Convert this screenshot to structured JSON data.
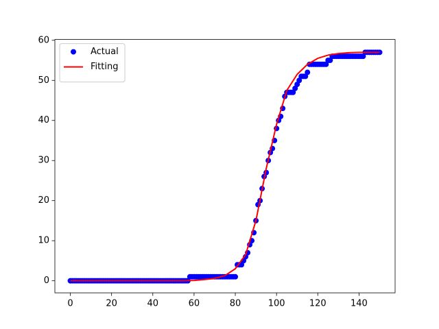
{
  "chart_data": {
    "type": "line",
    "series": [
      {
        "name": "Actual",
        "color": "#0000ff",
        "mode": "markers",
        "x": [
          0,
          1,
          2,
          3,
          4,
          5,
          6,
          7,
          8,
          9,
          10,
          11,
          12,
          13,
          14,
          15,
          16,
          17,
          18,
          19,
          20,
          21,
          22,
          23,
          24,
          25,
          26,
          27,
          28,
          29,
          30,
          31,
          32,
          33,
          34,
          35,
          36,
          37,
          38,
          39,
          40,
          41,
          42,
          43,
          44,
          45,
          46,
          47,
          48,
          49,
          50,
          51,
          52,
          53,
          54,
          55,
          56,
          57,
          58,
          59,
          60,
          61,
          62,
          63,
          64,
          65,
          66,
          67,
          68,
          69,
          70,
          71,
          72,
          73,
          74,
          75,
          76,
          77,
          78,
          79,
          80,
          81,
          82,
          83,
          84,
          85,
          86,
          87,
          88,
          89,
          90,
          91,
          92,
          93,
          94,
          95,
          96,
          97,
          98,
          99,
          100,
          101,
          102,
          103,
          104,
          105,
          106,
          107,
          108,
          109,
          110,
          111,
          112,
          113,
          114,
          115,
          116,
          117,
          118,
          119,
          120,
          121,
          122,
          123,
          124,
          125,
          126,
          127,
          128,
          129,
          130,
          131,
          132,
          133,
          134,
          135,
          136,
          137,
          138,
          139,
          140,
          141,
          142,
          143,
          144,
          145,
          146,
          147,
          148,
          149,
          150
        ],
        "values": [
          0,
          0,
          0,
          0,
          0,
          0,
          0,
          0,
          0,
          0,
          0,
          0,
          0,
          0,
          0,
          0,
          0,
          0,
          0,
          0,
          0,
          0,
          0,
          0,
          0,
          0,
          0,
          0,
          0,
          0,
          0,
          0,
          0,
          0,
          0,
          0,
          0,
          0,
          0,
          0,
          0,
          0,
          0,
          0,
          0,
          0,
          0,
          0,
          0,
          0,
          0,
          0,
          0,
          0,
          0,
          0,
          0,
          0,
          1,
          1,
          1,
          1,
          1,
          1,
          1,
          1,
          1,
          1,
          1,
          1,
          1,
          1,
          1,
          1,
          1,
          1,
          1,
          1,
          1,
          1,
          1,
          4,
          4,
          4,
          5,
          6,
          7,
          9,
          10,
          12,
          15,
          19,
          20,
          23,
          26,
          27,
          30,
          32,
          33,
          35,
          38,
          40,
          41,
          43,
          46,
          47,
          47,
          47,
          47,
          48,
          49,
          50,
          51,
          51,
          51,
          52,
          54,
          54,
          54,
          54,
          54,
          54,
          54,
          54,
          54,
          55,
          55,
          56,
          56,
          56,
          56,
          56,
          56,
          56,
          56,
          56,
          56,
          56,
          56,
          56,
          56,
          56,
          56,
          57,
          57,
          57,
          57,
          57,
          57,
          57,
          57
        ]
      },
      {
        "name": "Fitting",
        "color": "#ff0000",
        "mode": "line",
        "x": [
          0,
          5,
          10,
          15,
          20,
          25,
          30,
          35,
          40,
          45,
          50,
          55,
          60,
          65,
          70,
          75,
          80,
          85,
          90,
          95,
          100,
          105,
          110,
          115,
          120,
          125,
          130,
          135,
          140,
          145,
          150
        ],
        "values": [
          0,
          0,
          0,
          0,
          0,
          0,
          0,
          0,
          0,
          0,
          0,
          0,
          0.1,
          0.3,
          0.6,
          1.3,
          3,
          6.5,
          15,
          28,
          39,
          47.5,
          51.5,
          54,
          55.5,
          56.3,
          56.7,
          56.9,
          57,
          57,
          57
        ]
      }
    ],
    "xlim": [
      -7.5,
      157.5
    ],
    "xticks": [
      0,
      20,
      40,
      60,
      80,
      100,
      120,
      140
    ],
    "ylim": [
      -3,
      60.2
    ],
    "yticks": [
      0,
      10,
      20,
      30,
      40,
      50,
      60
    ],
    "legend": "upper left",
    "grid": false
  }
}
